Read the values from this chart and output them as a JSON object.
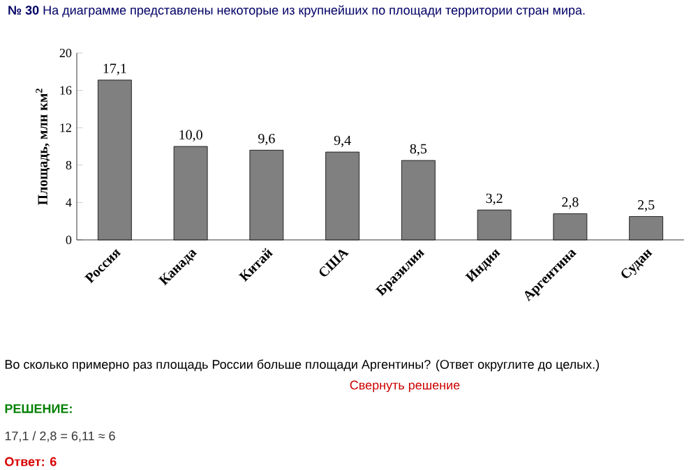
{
  "chart_data": {
    "type": "bar",
    "title": "**№ 30** На диаграмме представлены некоторые из крупнейших по площади территории стран мира.",
    "ylabel": "Площадь, млн км$^{2}$",
    "categories": [
      "Россия",
      "Канада",
      "Китай",
      "США",
      "Бразилия",
      "Индия",
      "Аргентина",
      "Судан"
    ],
    "values": [
      17.1,
      10.0,
      9.6,
      9.4,
      8.5,
      3.2,
      2.8,
      2.5
    ],
    "value_labels": [
      "17,1",
      "10,0",
      "9,6",
      "9,4",
      "8,5",
      "3,2",
      "2,8",
      "2,5"
    ],
    "color": "#808080",
    "ylim": [
      0,
      20
    ],
    "yticks": [
      0,
      4,
      8,
      12,
      16,
      20
    ],
    "grid": false,
    "annotations": [
      "Во сколько примерно раз площадь России больше площади Аргентины? (Ответ округлите до целых.)",
      "Свернуть решение",
      "РЕШЕНИЕ:",
      "17,1 / 2,8 = 6,11 ≈ 6",
      "Ответ: 6"
    ]
  }
}
